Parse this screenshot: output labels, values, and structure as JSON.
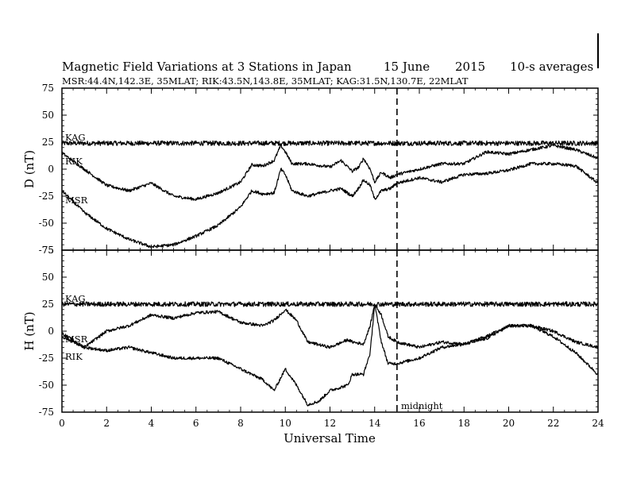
{
  "header": {
    "title": "Magnetic Field Variations at 3 Stations in Japan",
    "date": "15 June",
    "year": "2015",
    "averaging": "10-s averages",
    "stations_line": "MSR:44.4N,142.3E, 35MLAT;  RIK:43.5N,143.8E, 35MLAT;  KAG:31.5N,130.7E, 22MLAT"
  },
  "midnight_label": "midnight",
  "colors": {
    "line": "#000000",
    "background": "#ffffff"
  },
  "chart_data": [
    {
      "type": "line",
      "panel": "top",
      "ylabel": "D (nT)",
      "xlabel": "",
      "xlim": [
        0,
        24
      ],
      "ylim": [
        -75,
        75
      ],
      "xticks": [
        "0",
        "2",
        "4",
        "6",
        "8",
        "10",
        "12",
        "14",
        "16",
        "18",
        "20",
        "22",
        "24"
      ],
      "yticks": [
        "75",
        "50",
        "25",
        "0",
        "-25",
        "-50",
        "-75"
      ],
      "marker_x": 15,
      "series": [
        {
          "name": "KAG",
          "x": [
            0,
            2,
            4,
            6,
            8,
            10,
            12,
            14,
            15,
            16,
            18,
            20,
            22,
            24
          ],
          "values": [
            24,
            24,
            24,
            24,
            24,
            24,
            24,
            24,
            24,
            24,
            24,
            24,
            24,
            24
          ]
        },
        {
          "name": "RIK",
          "x": [
            0,
            1,
            2,
            3,
            4,
            5,
            6,
            7,
            8,
            8.5,
            9,
            9.5,
            9.8,
            10,
            10.3,
            11,
            12,
            12.5,
            13,
            13.3,
            13.5,
            13.8,
            14,
            14.3,
            14.7,
            15,
            16,
            17,
            18,
            19,
            20,
            21,
            22,
            23,
            24
          ],
          "values": [
            15,
            0,
            -15,
            -20,
            -13,
            -25,
            -28,
            -22,
            -12,
            4,
            3,
            8,
            22,
            16,
            5,
            5,
            2,
            8,
            -2,
            2,
            10,
            0,
            -12,
            -3,
            -8,
            -5,
            0,
            5,
            5,
            16,
            14,
            18,
            22,
            18,
            10
          ]
        },
        {
          "name": "MSR",
          "x": [
            0,
            1,
            2,
            3,
            4,
            5,
            6,
            7,
            8,
            8.5,
            9,
            9.5,
            9.8,
            10,
            10.3,
            11,
            12,
            12.5,
            13,
            13.3,
            13.5,
            13.8,
            14,
            14.3,
            14.7,
            15,
            16,
            17,
            18,
            19,
            20,
            21,
            22,
            23,
            24
          ],
          "values": [
            -20,
            -40,
            -55,
            -65,
            -72,
            -70,
            -62,
            -52,
            -35,
            -20,
            -23,
            -22,
            0,
            -5,
            -20,
            -25,
            -20,
            -18,
            -25,
            -17,
            -10,
            -15,
            -28,
            -20,
            -18,
            -13,
            -8,
            -12,
            -5,
            -4,
            -1,
            5,
            5,
            3,
            -13
          ]
        }
      ]
    },
    {
      "type": "line",
      "panel": "bottom",
      "ylabel": "H (nT)",
      "xlabel": "Universal Time",
      "xlim": [
        0,
        24
      ],
      "ylim": [
        -75,
        75
      ],
      "xticks": [
        "0",
        "2",
        "4",
        "6",
        "8",
        "10",
        "12",
        "14",
        "16",
        "18",
        "20",
        "22",
        "24"
      ],
      "yticks": [
        "75",
        "50",
        "25",
        "0",
        "-25",
        "-50",
        "-75"
      ],
      "marker_x": 15,
      "series": [
        {
          "name": "KAG",
          "x": [
            0,
            2,
            4,
            6,
            8,
            10,
            12,
            14,
            15,
            16,
            18,
            20,
            22,
            24
          ],
          "values": [
            25,
            25,
            25,
            25,
            25,
            25,
            25,
            25,
            25,
            25,
            25,
            25,
            25,
            25
          ]
        },
        {
          "name": "MSR",
          "x": [
            0,
            1,
            2,
            3,
            4,
            5,
            6,
            7,
            8,
            9,
            9.5,
            10,
            10.5,
            11,
            12,
            12.8,
            13,
            13.5,
            13.8,
            14,
            14.3,
            14.6,
            15,
            16,
            17,
            18,
            19,
            20,
            21,
            22,
            23,
            24
          ],
          "values": [
            -5,
            -15,
            0,
            5,
            15,
            12,
            17,
            18,
            8,
            5,
            10,
            20,
            10,
            -10,
            -15,
            -8,
            -10,
            -12,
            5,
            25,
            15,
            -5,
            -10,
            -15,
            -10,
            -12,
            -7,
            5,
            5,
            0,
            -10,
            -15
          ]
        },
        {
          "name": "RIK",
          "x": [
            0,
            1,
            2,
            3,
            4,
            5,
            6,
            7,
            8,
            9,
            9.5,
            10,
            10.5,
            11,
            11.5,
            12,
            12.8,
            13,
            13.5,
            13.8,
            14,
            14.3,
            14.6,
            15,
            16,
            17,
            18,
            19,
            20,
            21,
            22,
            23,
            24
          ],
          "values": [
            -2,
            -15,
            -18,
            -15,
            -20,
            -25,
            -25,
            -25,
            -35,
            -45,
            -55,
            -35,
            -50,
            -68,
            -65,
            -55,
            -50,
            -40,
            -40,
            -20,
            25,
            -10,
            -30,
            -30,
            -25,
            -15,
            -12,
            -5,
            5,
            5,
            -5,
            -20,
            -40
          ]
        }
      ]
    }
  ]
}
